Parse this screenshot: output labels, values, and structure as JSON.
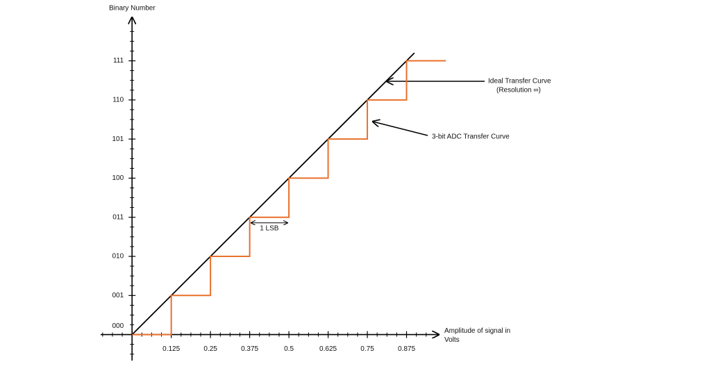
{
  "chart_data": {
    "type": "line",
    "y_axis_label": "Binary Number",
    "x_axis_label": "Amplitude of signal in Volts",
    "xlim": [
      -0.1,
      1.0
    ],
    "ylim": [
      -0.7,
      8.2
    ],
    "xticks": [
      0.125,
      0.25,
      0.375,
      0.5,
      0.625,
      0.75,
      0.875
    ],
    "yticks": [
      {
        "value": 0,
        "label": "000"
      },
      {
        "value": 1,
        "label": "001"
      },
      {
        "value": 2,
        "label": "010"
      },
      {
        "value": 3,
        "label": "011"
      },
      {
        "value": 4,
        "label": "100"
      },
      {
        "value": 5,
        "label": "101"
      },
      {
        "value": 6,
        "label": "110"
      },
      {
        "value": 7,
        "label": "111"
      }
    ],
    "xminorticks": [
      -0.09375,
      -0.0625,
      -0.03125,
      0,
      0.03125,
      0.0625,
      0.09375,
      0.15625,
      0.1875,
      0.21875,
      0.28125,
      0.3125,
      0.34375,
      0.40625,
      0.4375,
      0.46875,
      0.53125,
      0.5625,
      0.59375,
      0.65625,
      0.6875,
      0.71875,
      0.78125,
      0.8125,
      0.84375,
      0.90625,
      0.9375
    ],
    "yminorticks": [
      -0.5,
      -0.25,
      0.25,
      0.5,
      0.75,
      1.25,
      1.5,
      1.75,
      2.25,
      2.5,
      2.75,
      3.25,
      3.5,
      3.75,
      4.25,
      4.5,
      4.75,
      5.25,
      5.5,
      5.75,
      6.25,
      6.5,
      6.75,
      7.25,
      7.5,
      7.75
    ],
    "series": [
      {
        "color": "#000000",
        "x": [
          0,
          0.9
        ],
        "values": [
          0,
          7.2
        ]
      },
      {
        "color": "#e8702a",
        "x": [
          0,
          0.125,
          0.125,
          0.25,
          0.25,
          0.375,
          0.375,
          0.5,
          0.5,
          0.625,
          0.625,
          0.75,
          0.75,
          0.875,
          0.875,
          1.0
        ],
        "values": [
          0,
          0,
          1,
          1,
          2,
          2,
          3,
          3,
          4,
          4,
          5,
          5,
          6,
          6,
          7,
          7
        ]
      }
    ],
    "annotations": [
      "Ideal Transfer Curve",
      "(Resolution ∞)",
      "3-bit ADC Transfer Curve",
      "1 LSB"
    ]
  }
}
